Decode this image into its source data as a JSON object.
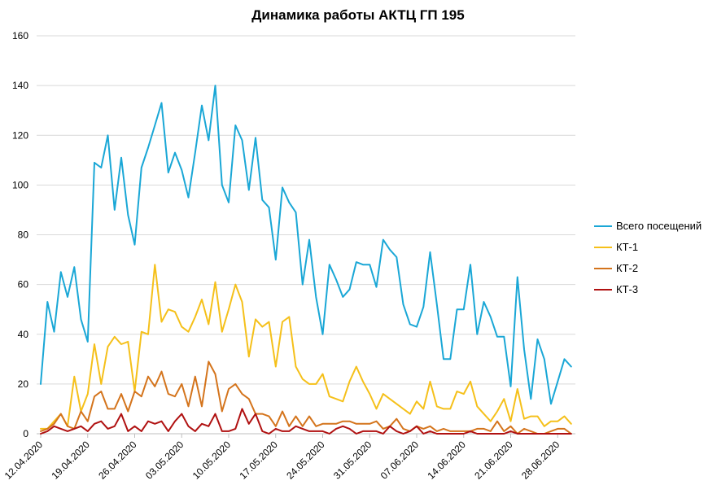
{
  "chart_data": {
    "type": "line",
    "title": "Динамика  работы АКТЦ ГП 195",
    "xlabel": "",
    "ylabel": "",
    "ylim": [
      0,
      160
    ],
    "yticks": [
      0,
      20,
      40,
      60,
      80,
      100,
      120,
      140,
      160
    ],
    "grid": "horizontal",
    "legend": "right",
    "x_start": "12.04.2020",
    "x_end": "02.07.2020",
    "x_tick_labels": [
      "12.04.2020",
      "19.04.2020",
      "26.04.2020",
      "03.05.2020",
      "10.05.2020",
      "17.05.2020",
      "24.05.2020",
      "31.05.2020",
      "07.06.2020",
      "14.06.2020",
      "21.06.2020",
      "28.06.2020"
    ],
    "series": [
      {
        "name": "Всего посещений",
        "color": "#1aa7d6",
        "values": [
          20,
          53,
          41,
          65,
          55,
          67,
          46,
          37,
          109,
          107,
          120,
          90,
          111,
          88,
          76,
          107,
          115,
          124,
          133,
          105,
          113,
          106,
          95,
          113,
          132,
          118,
          140,
          100,
          93,
          124,
          118,
          98,
          119,
          94,
          91,
          70,
          99,
          93,
          89,
          60,
          78,
          55,
          40,
          68,
          62,
          55,
          58,
          69,
          68,
          68,
          59,
          78,
          74,
          71,
          52,
          44,
          43,
          51,
          73,
          52,
          30,
          30,
          50,
          50,
          68,
          40,
          53,
          47,
          39,
          39,
          19,
          63,
          34,
          14,
          38,
          30,
          12,
          21,
          30,
          27
        ]
      },
      {
        "name": "КТ-1",
        "color": "#f5c01a",
        "values": [
          2,
          2,
          5,
          8,
          3,
          23,
          9,
          16,
          36,
          20,
          35,
          39,
          36,
          37,
          17,
          41,
          40,
          68,
          45,
          50,
          49,
          43,
          41,
          47,
          54,
          44,
          61,
          41,
          50,
          60,
          53,
          31,
          46,
          43,
          45,
          27,
          45,
          47,
          27,
          22,
          20,
          20,
          24,
          15,
          14,
          13,
          21,
          27,
          21,
          16,
          10,
          16,
          14,
          12,
          10,
          8,
          13,
          10,
          21,
          11,
          10,
          10,
          17,
          16,
          21,
          11,
          8,
          5,
          9,
          14,
          5,
          18,
          6,
          7,
          7,
          3,
          5,
          5,
          7,
          4
        ]
      },
      {
        "name": "КТ-2",
        "color": "#d4741c",
        "values": [
          1,
          2,
          4,
          8,
          3,
          2,
          9,
          5,
          15,
          17,
          10,
          10,
          16,
          9,
          17,
          15,
          23,
          19,
          25,
          16,
          15,
          20,
          11,
          23,
          11,
          29,
          24,
          9,
          18,
          20,
          16,
          14,
          8,
          8,
          7,
          3,
          9,
          3,
          7,
          3,
          7,
          3,
          4,
          4,
          4,
          5,
          5,
          4,
          4,
          4,
          5,
          2,
          3,
          6,
          2,
          1,
          3,
          2,
          3,
          1,
          2,
          1,
          1,
          1,
          1,
          2,
          2,
          1,
          5,
          1,
          3,
          0,
          2,
          1,
          0,
          0,
          1,
          2,
          2,
          0
        ]
      },
      {
        "name": "КТ-3",
        "color": "#b01111",
        "values": [
          0,
          1,
          3,
          2,
          1,
          2,
          3,
          1,
          4,
          5,
          2,
          3,
          8,
          1,
          3,
          1,
          5,
          4,
          5,
          1,
          5,
          8,
          3,
          1,
          4,
          3,
          8,
          1,
          1,
          2,
          10,
          4,
          8,
          1,
          0,
          2,
          1,
          1,
          3,
          2,
          1,
          1,
          1,
          0,
          2,
          3,
          2,
          0,
          1,
          1,
          1,
          0,
          3,
          1,
          0,
          1,
          3,
          0,
          1,
          0,
          0,
          0,
          0,
          0,
          1,
          0,
          0,
          0,
          0,
          0,
          1,
          0,
          0,
          0,
          0,
          0,
          0,
          0,
          0,
          0
        ]
      }
    ]
  }
}
